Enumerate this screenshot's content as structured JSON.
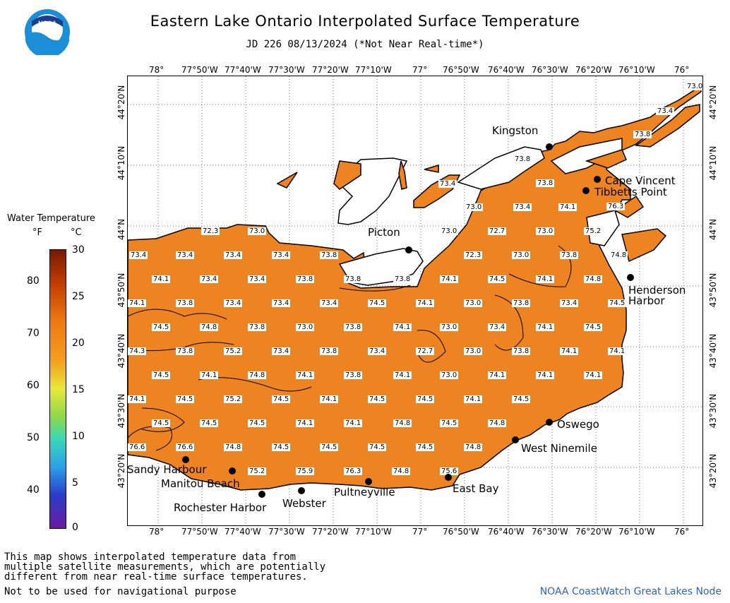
{
  "header": {
    "title": "Eastern Lake Ontario Interpolated Surface Temperature",
    "subtitle": "JD 226 08/13/2024 (*Not Near Real-time*)",
    "logo_text": "NOAA"
  },
  "axes": {
    "top_lon": [
      "78°",
      "77°50'W",
      "77°40'W",
      "77°30'W",
      "77°20'W",
      "77°10'W",
      "77°",
      "76°50'W",
      "76°40'W",
      "76°30'W",
      "76°20'W",
      "76°10'W",
      "76°"
    ],
    "lat": [
      "44°20'N",
      "44°10'N",
      "44°N",
      "43°50'N",
      "43°40'N",
      "43°30'N",
      "43°20'N"
    ]
  },
  "legend": {
    "title": "Water Temperature",
    "unit_f": "°F",
    "unit_c": "°C",
    "f_ticks": [
      "80",
      "70",
      "60",
      "50",
      "40"
    ],
    "c_ticks": [
      "30",
      "25",
      "20",
      "15",
      "10",
      "5",
      "0"
    ]
  },
  "cities": [
    {
      "name": "Kingston"
    },
    {
      "name": "Cape Vincent"
    },
    {
      "name": "Tibbetts Point"
    },
    {
      "name": "Picton"
    },
    {
      "name": "Henderson"
    },
    {
      "name": "Harbor"
    },
    {
      "name": "Oswego"
    },
    {
      "name": "West Ninemile"
    },
    {
      "name": "Sandy Harbour"
    },
    {
      "name": "Manitou Beach"
    },
    {
      "name": "Rochester Harbor"
    },
    {
      "name": "Webster"
    },
    {
      "name": "Pultneyville"
    },
    {
      "name": "East Bay"
    }
  ],
  "temps": [
    "73.0",
    "73.4",
    "73.8",
    "73.4",
    "73.8",
    "73.8",
    "73.0",
    "73.4",
    "74.1",
    "76.3",
    "72.3",
    "73.0",
    "73.0",
    "72.7",
    "73.0",
    "75.2",
    "73.4",
    "73.4",
    "73.4",
    "73.4",
    "73.8",
    "72.3",
    "73.0",
    "73.8",
    "74.8",
    "74.1",
    "73.4",
    "73.4",
    "73.8",
    "73.8",
    "73.8",
    "74.1",
    "74.5",
    "74.1",
    "74.8",
    "74.1",
    "73.8",
    "73.4",
    "73.4",
    "73.4",
    "74.5",
    "74.1",
    "73.0",
    "73.8",
    "73.4",
    "74.5",
    "74.5",
    "74.8",
    "73.8",
    "73.0",
    "73.8",
    "74.1",
    "73.0",
    "73.4",
    "74.1",
    "74.5",
    "74.3",
    "73.8",
    "75.2",
    "73.4",
    "73.8",
    "73.4",
    "72.7",
    "73.0",
    "73.8",
    "74.1",
    "74.1",
    "74.5",
    "74.1",
    "74.8",
    "74.1",
    "73.8",
    "74.1",
    "73.0",
    "74.1",
    "74.1",
    "74.1",
    "74.1",
    "74.5",
    "75.2",
    "74.5",
    "74.1",
    "74.5",
    "74.5",
    "74.1",
    "74.5",
    "74.5",
    "74.5",
    "74.5",
    "74.1",
    "74.1",
    "74.8",
    "74.5",
    "74.8",
    "76.6",
    "76.6",
    "74.8",
    "74.5",
    "74.5",
    "74.5",
    "74.5",
    "74.8",
    "75.2",
    "75.9",
    "76.3",
    "74.8",
    "75.6"
  ],
  "footer": {
    "line1": "This map shows interpolated temperature data from",
    "line2": "multiple satellite measurements, which are potentially",
    "line3": "different from near real-time surface temperatures.",
    "line4": "Not to be used for navigational purpose",
    "credit": "NOAA CoastWatch Great Lakes Node"
  }
}
